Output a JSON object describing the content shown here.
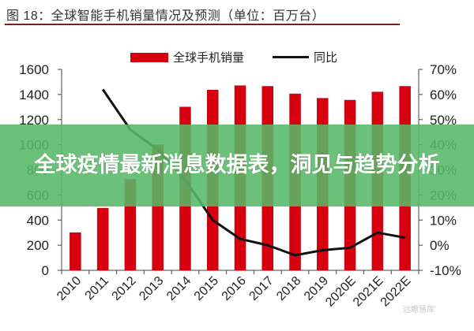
{
  "figure": {
    "title": "图 18：全球智能手机销量情况及预测（单位：百万台）",
    "rule_color": "#7a1e22"
  },
  "banner": {
    "text": "全球疫情最新消息数据表，洞见与趋势分析",
    "color": "#58b868"
  },
  "watermark": {
    "text": "远瞻慧库"
  },
  "legend": {
    "bar_label": "全球手机销量",
    "line_label": "同比"
  },
  "chart_data": {
    "type": "bar+line",
    "title": "全球智能手机销量情况及预测（单位：百万台）",
    "categories": [
      "2010",
      "2011",
      "2012",
      "2013",
      "2014",
      "2015",
      "2016",
      "2017",
      "2018",
      "2019",
      "2020E",
      "2021E",
      "2022E"
    ],
    "series": [
      {
        "name": "全球手机销量",
        "type": "bar",
        "axis": "left",
        "color": "#d7000f",
        "values": [
          300,
          495,
          725,
          1000,
          1300,
          1435,
          1470,
          1465,
          1405,
          1370,
          1355,
          1420,
          1465
        ]
      },
      {
        "name": "同比",
        "type": "line",
        "axis": "right",
        "color": "#111111",
        "values": [
          null,
          62,
          46,
          38,
          26,
          10,
          2.5,
          0,
          -4,
          -2,
          -1,
          5,
          3
        ]
      }
    ],
    "left_axis": {
      "ylim": [
        0,
        1600
      ],
      "ticks": [
        "0",
        "200",
        "400",
        "600",
        "800",
        "1000",
        "1200",
        "1400",
        "1600"
      ]
    },
    "right_axis": {
      "ylim": [
        -10,
        70
      ],
      "ticks": [
        "-10%",
        "0%",
        "10%",
        "20%",
        "30%",
        "40%",
        "50%",
        "60%",
        "70%"
      ]
    },
    "xlabel": "",
    "ylabel": "",
    "grid": false,
    "legend_position": "top"
  }
}
